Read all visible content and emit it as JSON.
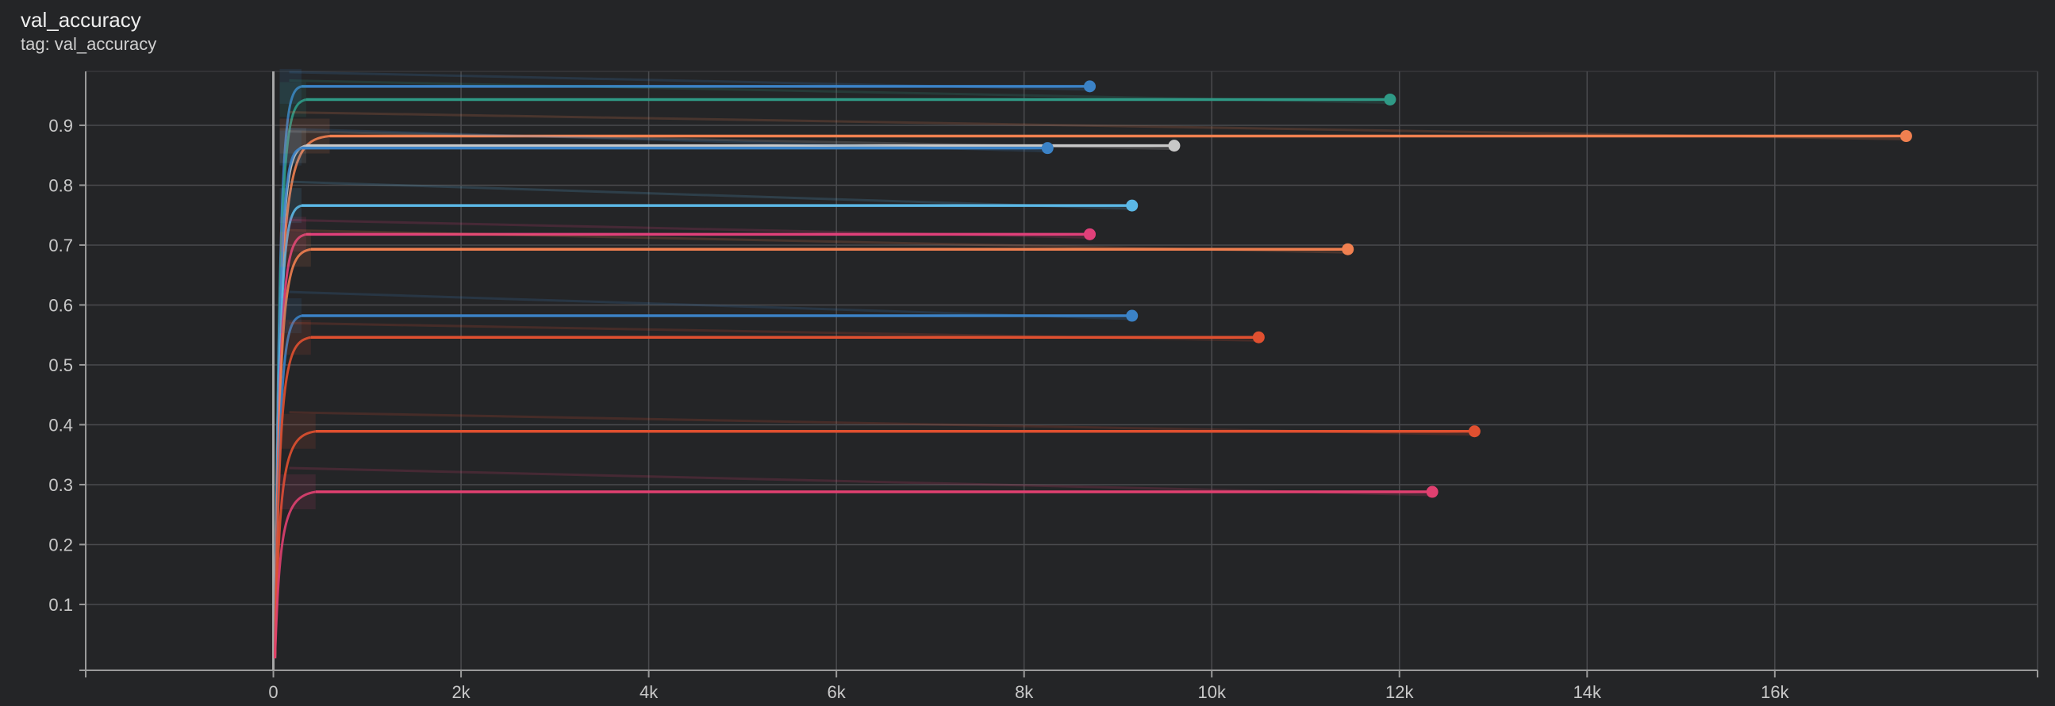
{
  "card": {
    "title": "val_accuracy",
    "subtitle": "tag: val_accuracy"
  },
  "chart_data": {
    "type": "line",
    "title": "val_accuracy",
    "subtitle": "tag: val_accuracy",
    "xlabel": "",
    "ylabel": "",
    "xlim": [
      -2000,
      18800
    ],
    "ylim": [
      -0.01,
      0.99
    ],
    "x_ticks": [
      0,
      2000,
      4000,
      6000,
      8000,
      10000,
      12000,
      14000,
      16000
    ],
    "x_tick_labels": [
      "0",
      "2k",
      "4k",
      "6k",
      "8k",
      "10k",
      "12k",
      "14k",
      "16k"
    ],
    "y_ticks": [
      0.1,
      0.2,
      0.3,
      0.4,
      0.5,
      0.6,
      0.7,
      0.8,
      0.9
    ],
    "y_tick_labels": [
      "0.1",
      "0.2",
      "0.3",
      "0.4",
      "0.5",
      "0.6",
      "0.7",
      "0.8",
      "0.9"
    ],
    "grid": true,
    "legend": "none",
    "series": [
      {
        "color": "#3b82c6",
        "plateau_x": 300,
        "final_x": 8700,
        "final_y": 0.965
      },
      {
        "color": "#2f9a86",
        "plateau_x": 350,
        "final_x": 11900,
        "final_y": 0.943
      },
      {
        "color": "#f08050",
        "plateau_x": 600,
        "final_x": 17400,
        "final_y": 0.882
      },
      {
        "color": "#c8c8c8",
        "plateau_x": 350,
        "final_x": 9600,
        "final_y": 0.866
      },
      {
        "color": "#3b82c6",
        "plateau_x": 300,
        "final_x": 8250,
        "final_y": 0.862
      },
      {
        "color": "#5bb8e6",
        "plateau_x": 300,
        "final_x": 9150,
        "final_y": 0.766
      },
      {
        "color": "#e0407a",
        "plateau_x": 350,
        "final_x": 8700,
        "final_y": 0.718
      },
      {
        "color": "#f08050",
        "plateau_x": 400,
        "final_x": 11450,
        "final_y": 0.693
      },
      {
        "color": "#3b82c6",
        "plateau_x": 300,
        "final_x": 9150,
        "final_y": 0.582
      },
      {
        "color": "#e05030",
        "plateau_x": 400,
        "final_x": 10500,
        "final_y": 0.546
      },
      {
        "color": "#e05030",
        "plateau_x": 450,
        "final_x": 12800,
        "final_y": 0.389
      },
      {
        "color": "#e04070",
        "plateau_x": 450,
        "final_x": 12350,
        "final_y": 0.288
      }
    ]
  }
}
